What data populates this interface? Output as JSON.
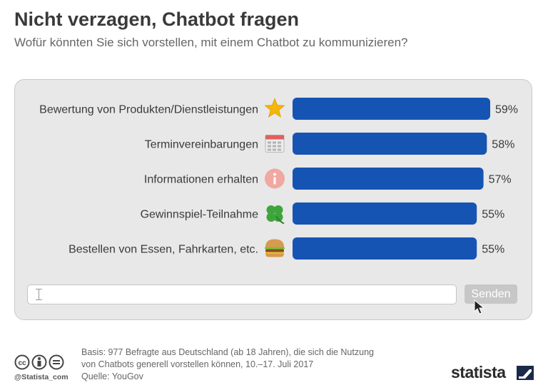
{
  "header": {
    "title": "Nicht verzagen, Chatbot fragen",
    "subtitle": "Wofür könnten Sie sich vorstellen, mit einem Chatbot zu kommunizieren?"
  },
  "chart_data": {
    "type": "bar",
    "orientation": "horizontal",
    "categories": [
      "Bewertung von Produkten/Dienstleistungen",
      "Terminvereinbarungen",
      "Informationen erhalten",
      "Gewinnspiel-Teilnahme",
      "Bestellen von Essen, Fahrkarten, etc."
    ],
    "values": [
      59,
      58,
      57,
      55,
      55
    ],
    "value_labels": [
      "59%",
      "58%",
      "57%",
      "55%",
      "55%"
    ],
    "unit": "%",
    "icons": [
      "star-icon",
      "calendar-icon",
      "info-icon",
      "clover-icon",
      "burger-icon"
    ],
    "bar_color": "#1654b4",
    "grid": false,
    "legend": "none"
  },
  "chat": {
    "input_value": "",
    "send_label": "Senden"
  },
  "footer": {
    "basis_line1": "Basis: 977 Befragte aus Deutschland (ab 18 Jahren), die sich die Nutzung",
    "basis_line2": "von Chatbots generell vorstellen können, 10.–17. Juli 2017",
    "source": "Quelle: YouGov",
    "handle": "@Statista_com",
    "logo": "statista"
  },
  "colors": {
    "bar": "#1654b4",
    "panel": "#e8e8e8",
    "send_button": "#c7c7c7"
  }
}
